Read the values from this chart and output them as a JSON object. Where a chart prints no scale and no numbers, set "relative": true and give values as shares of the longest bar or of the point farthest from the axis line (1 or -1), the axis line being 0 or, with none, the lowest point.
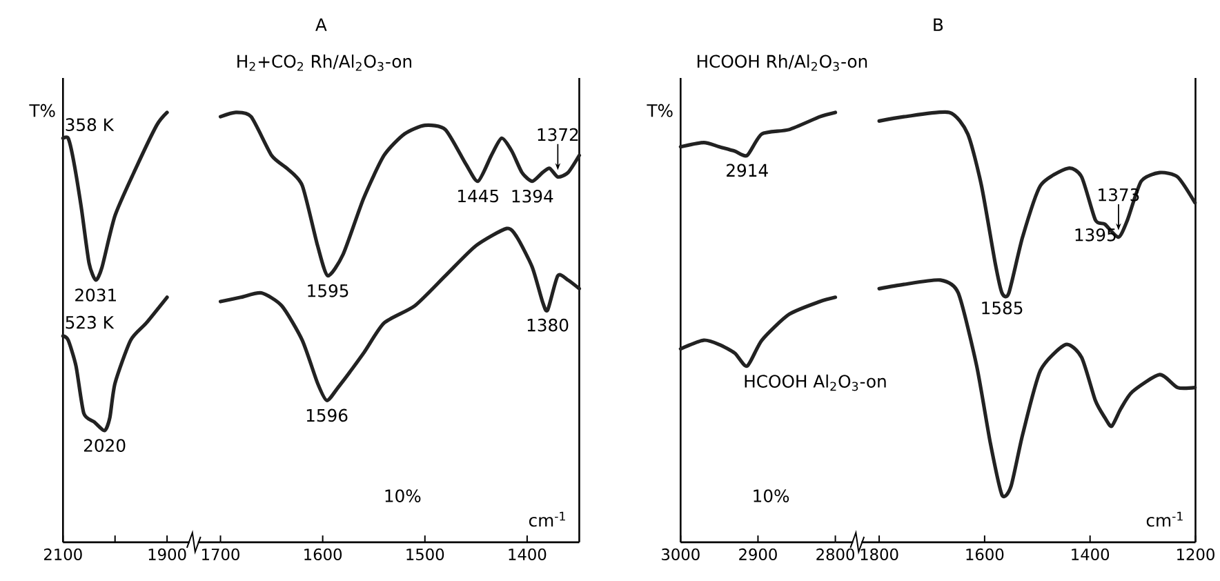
{
  "chart_data": [
    {
      "type": "line",
      "ylabel": "T%",
      "relative": true,
      "xlim": [
        2100,
        1900
      ],
      "xticks": [
        2100,
        {
          "value": 2000,
          "label": null
        },
        1900
      ],
      "tick_labels": "x",
      "series": [
        {
          "name": "358 K",
          "color": "#222222",
          "x": [
            2100,
            2090,
            2080,
            2065,
            2050,
            2037,
            2025,
            2000,
            1960,
            1920,
            1900
          ],
          "values": [
            0.94,
            0.94,
            0.89,
            0.78,
            0.65,
            0.61,
            0.64,
            0.76,
            0.87,
            0.97,
            1.0
          ]
        },
        {
          "name": "523 K",
          "color": "#222222",
          "x": [
            2100,
            2090,
            2075,
            2060,
            2040,
            2020,
            2010,
            2000,
            1970,
            1940,
            1900
          ],
          "values": [
            0.48,
            0.47,
            0.41,
            0.3,
            0.28,
            0.26,
            0.29,
            0.37,
            0.47,
            0.51,
            0.57
          ]
        }
      ],
      "annotations": [
        {
          "text": "2031",
          "x": 2037,
          "y": 0.61
        },
        {
          "text": "2020",
          "x": 2020,
          "y": 0.26
        }
      ]
    },
    {
      "type": "line",
      "title": "A",
      "subtitle": "H$_{2}$+CO$_{2}$  Rh/Al$_{2}$O$_{3}$-on",
      "xlabel": "cm$^{-1}$",
      "relative": true,
      "xlim": [
        1700,
        1349
      ],
      "xticks": [
        1700,
        1600,
        1500,
        1400
      ],
      "tick_labels": "x",
      "series": [
        {
          "color": "#222222",
          "x": [
            1700,
            1685,
            1670,
            1650,
            1635,
            1620,
            1605,
            1595,
            1580,
            1560,
            1540,
            1520,
            1500,
            1480,
            1460,
            1448,
            1435,
            1425,
            1415,
            1405,
            1395,
            1385,
            1378,
            1370,
            1360,
            1349
          ],
          "values": [
            0.99,
            1.0,
            0.99,
            0.9,
            0.87,
            0.83,
            0.69,
            0.62,
            0.67,
            0.8,
            0.9,
            0.95,
            0.97,
            0.96,
            0.88,
            0.84,
            0.9,
            0.94,
            0.91,
            0.86,
            0.84,
            0.86,
            0.87,
            0.85,
            0.86,
            0.9
          ]
        },
        {
          "color": "#222222",
          "x": [
            1700,
            1680,
            1660,
            1640,
            1620,
            1605,
            1596,
            1585,
            1560,
            1540,
            1510,
            1480,
            1450,
            1420,
            1410,
            1395,
            1385,
            1380,
            1370,
            1360,
            1349
          ],
          "values": [
            0.56,
            0.57,
            0.58,
            0.55,
            0.47,
            0.37,
            0.33,
            0.36,
            0.44,
            0.51,
            0.55,
            0.62,
            0.69,
            0.73,
            0.71,
            0.64,
            0.56,
            0.54,
            0.62,
            0.61,
            0.59
          ]
        }
      ],
      "annotations": [
        {
          "text": "1595",
          "x": 1595,
          "y": 0.62
        },
        {
          "text": "1596",
          "x": 1596,
          "y": 0.33
        },
        {
          "text": "1445",
          "x": 1448,
          "y": 0.84
        },
        {
          "text": "1394",
          "x": 1395,
          "y": 0.84
        },
        {
          "text": "1372",
          "x": 1370,
          "y": 0.85
        },
        {
          "text": "1380",
          "x": 1380,
          "y": 0.54
        },
        "10%"
      ]
    },
    {
      "type": "line",
      "subtitle": "HCOOH   Rh/Al$_{2}$O$_{3}$-on",
      "ylabel": "T%",
      "relative": true,
      "xlim": [
        3000,
        2800
      ],
      "xticks": [
        3000,
        2900,
        2800
      ],
      "tick_labels": "x",
      "series": [
        {
          "color": "#222222",
          "x": [
            3000,
            2970,
            2950,
            2930,
            2914,
            2895,
            2860,
            2820,
            2800
          ],
          "values": [
            0.92,
            0.93,
            0.92,
            0.91,
            0.9,
            0.95,
            0.96,
            0.99,
            1.0
          ]
        },
        {
          "name": "HCOOH  Al$_{2}$O$_{3}$-on",
          "color": "#222222",
          "x": [
            3000,
            2970,
            2950,
            2930,
            2914,
            2895,
            2860,
            2820,
            2800
          ],
          "values": [
            0.45,
            0.47,
            0.46,
            0.44,
            0.41,
            0.47,
            0.53,
            0.56,
            0.57
          ]
        }
      ],
      "annotations": [
        {
          "text": "2914",
          "x": 2914,
          "y": 0.9
        },
        "10%"
      ]
    },
    {
      "type": "line",
      "title": "B",
      "xlabel": "cm$^{-1}$",
      "relative": true,
      "xlim": [
        1800,
        1200
      ],
      "xticks": [
        1800,
        1600,
        1400,
        1200
      ],
      "tick_labels": "x",
      "series": [
        {
          "color": "#222222",
          "x": [
            1800,
            1753,
            1667,
            1632,
            1606,
            1580,
            1567,
            1554,
            1528,
            1494,
            1442,
            1416,
            1390,
            1372,
            1346,
            1329,
            1303,
            1268,
            1234,
            1201
          ],
          "values": [
            0.98,
            0.99,
            1.0,
            0.95,
            0.83,
            0.65,
            0.58,
            0.58,
            0.71,
            0.83,
            0.87,
            0.85,
            0.75,
            0.74,
            0.71,
            0.75,
            0.84,
            0.86,
            0.85,
            0.79
          ]
        },
        {
          "color": "#222222",
          "x": [
            1800,
            1753,
            1684,
            1650,
            1615,
            1589,
            1567,
            1550,
            1528,
            1494,
            1446,
            1416,
            1390,
            1372,
            1359,
            1342,
            1320,
            1268,
            1234,
            1201
          ],
          "values": [
            0.59,
            0.6,
            0.61,
            0.58,
            0.41,
            0.23,
            0.11,
            0.13,
            0.25,
            0.4,
            0.46,
            0.43,
            0.33,
            0.29,
            0.27,
            0.31,
            0.35,
            0.39,
            0.36,
            0.36
          ]
        }
      ],
      "annotations": [
        {
          "text": "1585",
          "x": 1567,
          "y": 0.58
        },
        {
          "text": "1395",
          "x": 1390,
          "y": 0.75
        },
        {
          "text": "1373",
          "x": 1346,
          "y": 0.71
        }
      ]
    }
  ]
}
